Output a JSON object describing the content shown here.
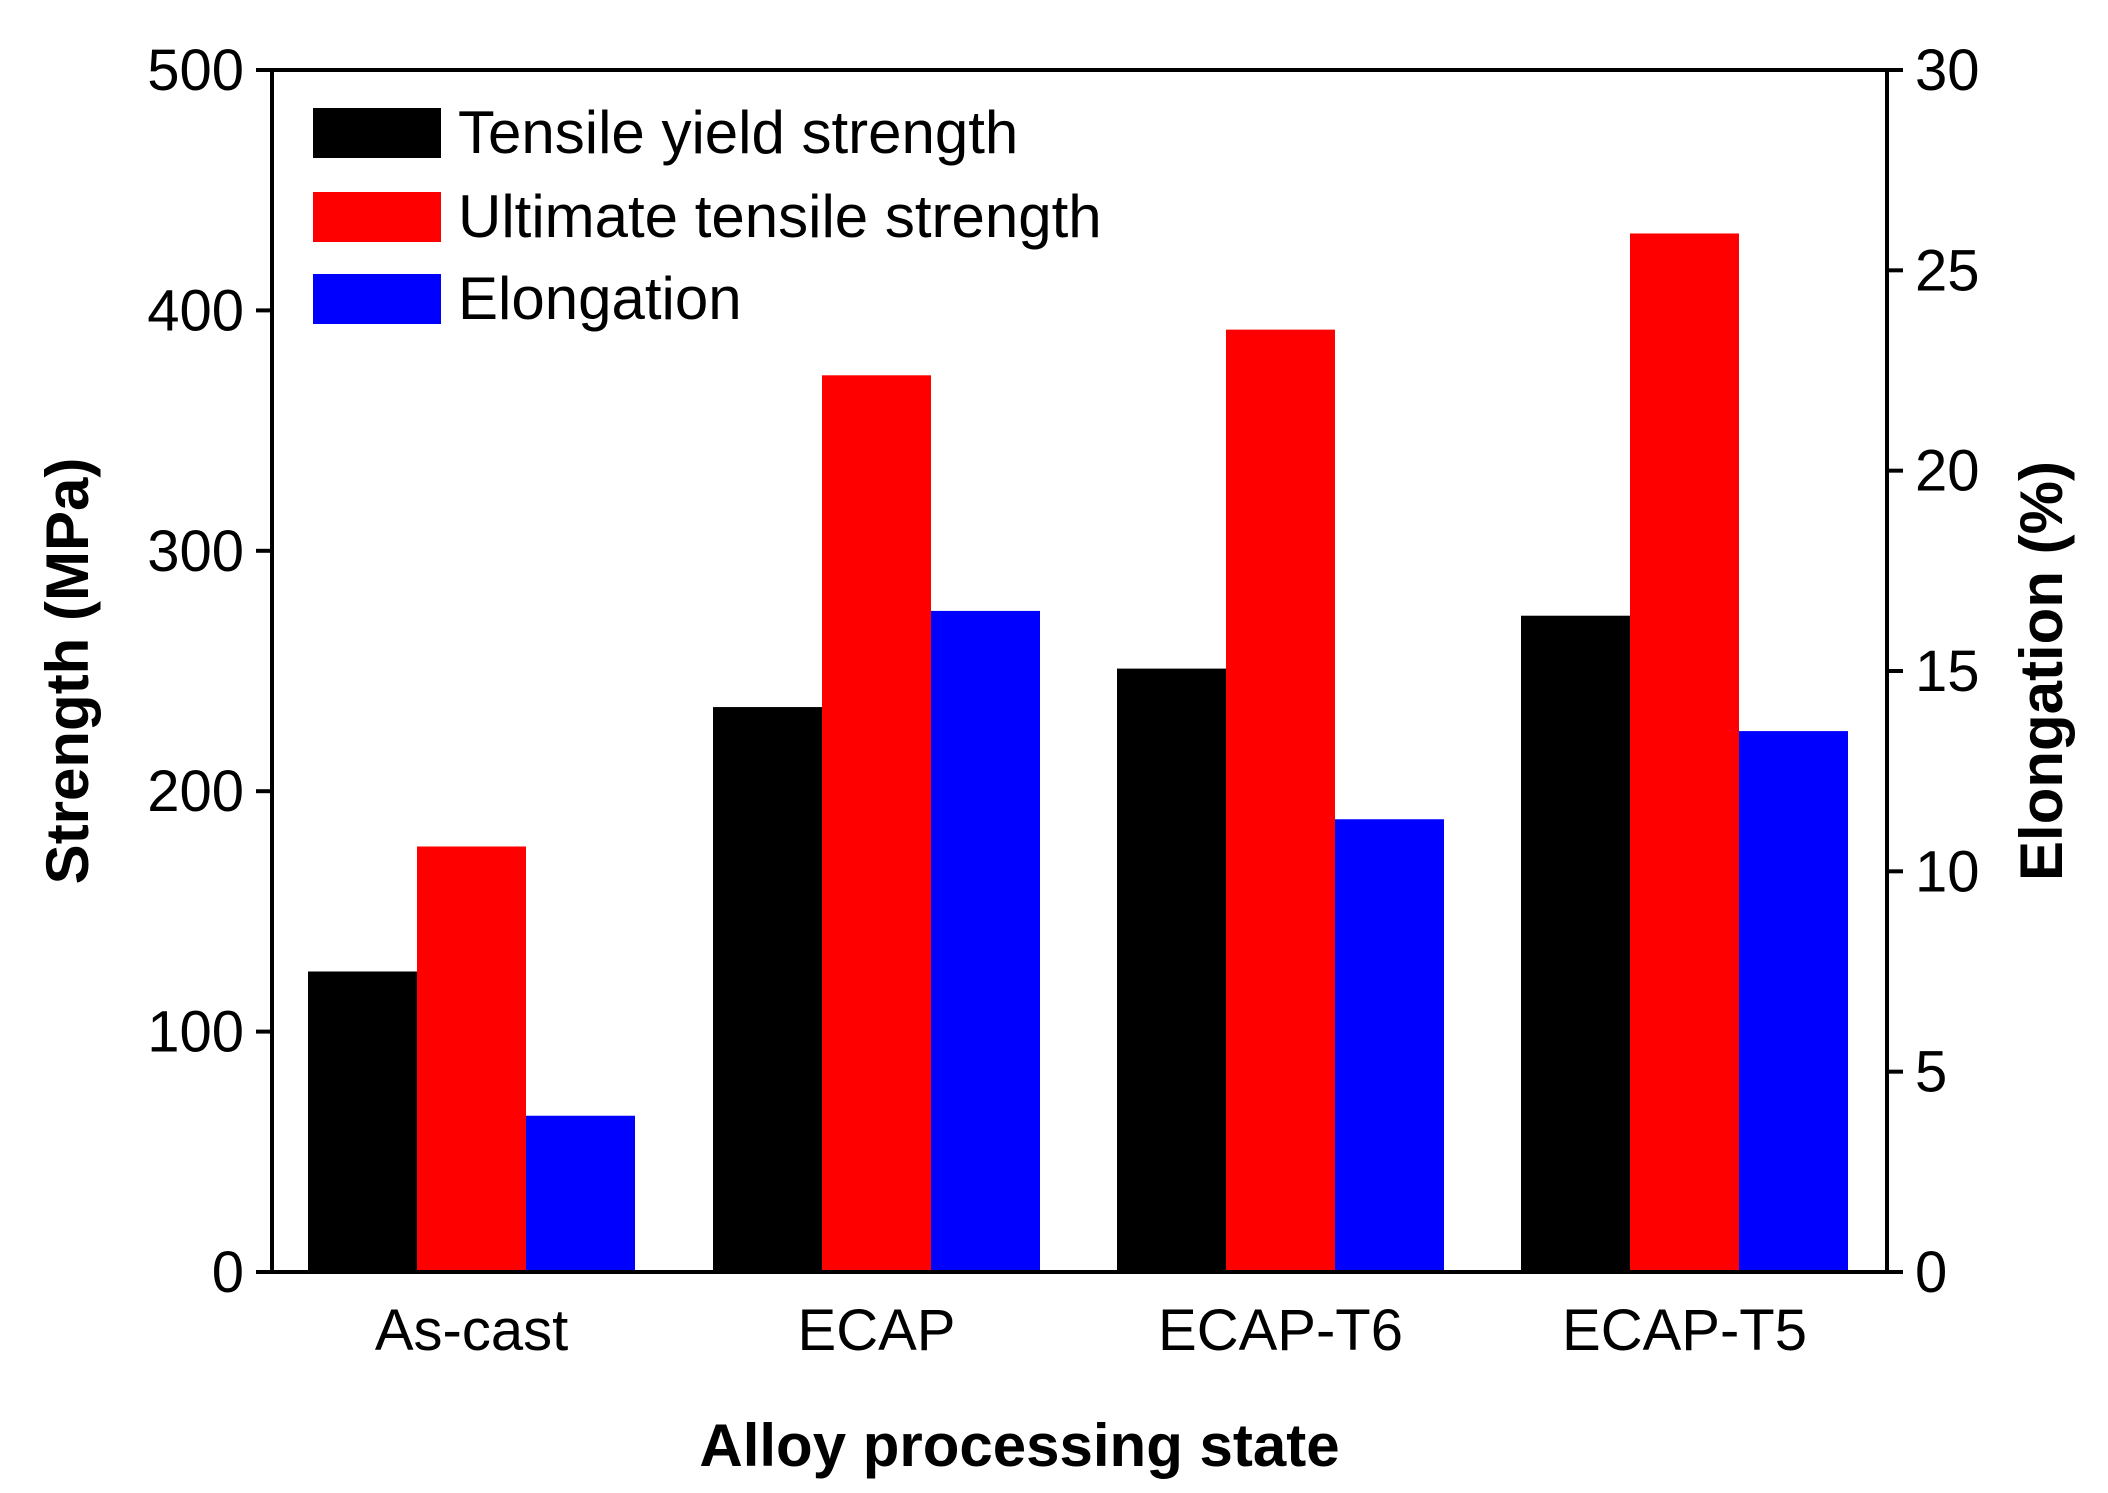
{
  "chart_data": {
    "type": "bar",
    "title": "",
    "categories": [
      "As-cast",
      "ECAP",
      "ECAP-T6",
      "ECAP-T5"
    ],
    "xlabel": "Alloy processing state",
    "ylabel": "Strength (MPa)",
    "y2label": "Elongation (%)",
    "ylim": [
      0,
      500
    ],
    "y2lim": [
      0,
      30
    ],
    "yticks": [
      "0",
      "100",
      "200",
      "300",
      "400",
      "500"
    ],
    "y2ticks": [
      "0",
      "5",
      "10",
      "15",
      "20",
      "25",
      "30"
    ],
    "grid": false,
    "legend_position": "top-left",
    "series": [
      {
        "name": "Tensile yield strength",
        "axis": "left",
        "color": "#000000",
        "values": [
          125,
          235,
          251,
          273
        ]
      },
      {
        "name": "Ultimate tensile strength",
        "axis": "left",
        "color": "#ff0000",
        "values": [
          177,
          373,
          392,
          432
        ]
      },
      {
        "name": "Elongation",
        "axis": "right",
        "color": "#0000ff",
        "values": [
          3.9,
          16.5,
          11.3,
          13.5
        ]
      }
    ]
  }
}
